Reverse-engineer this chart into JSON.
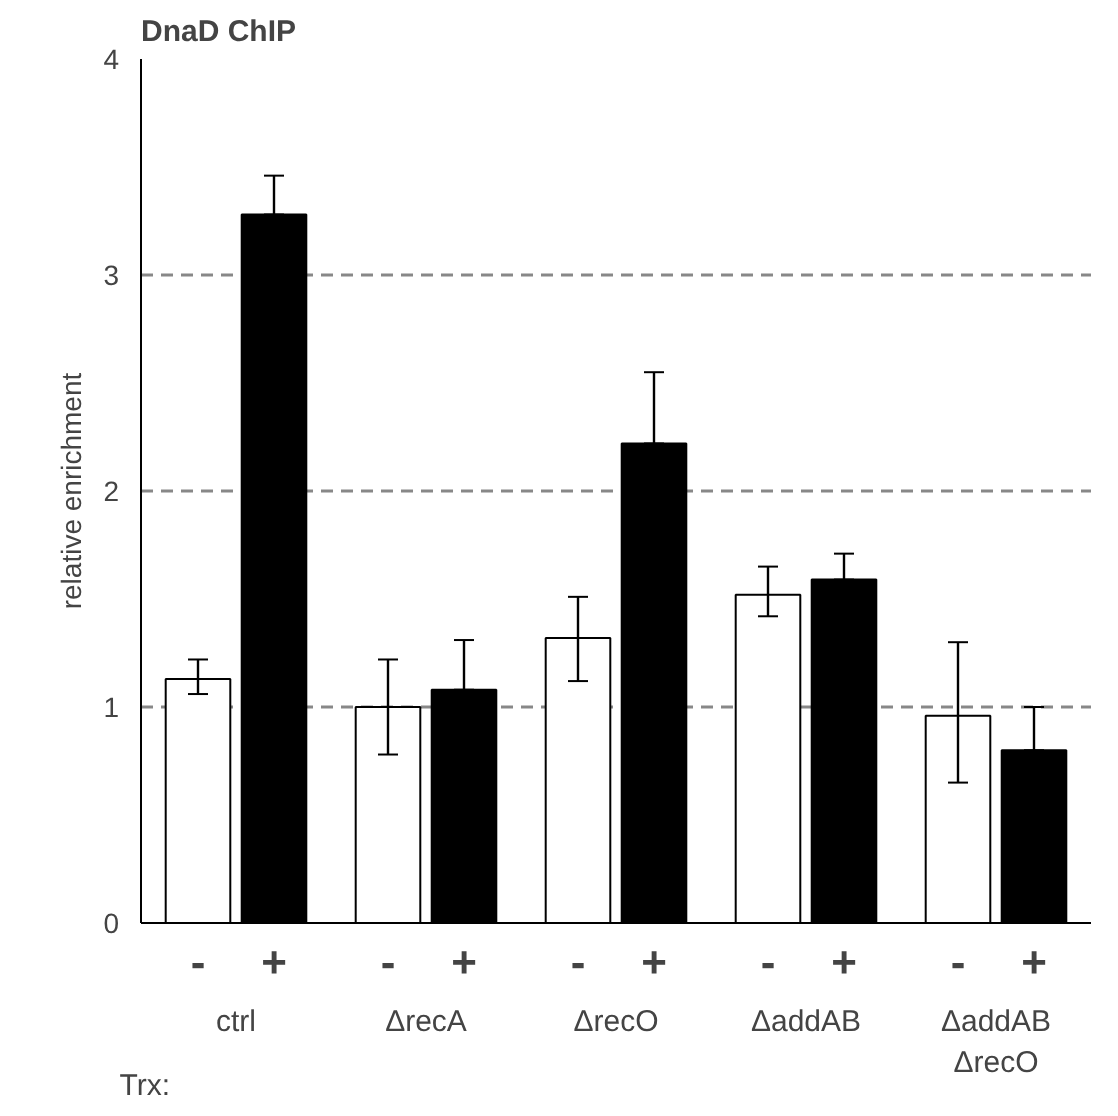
{
  "chart_data": {
    "type": "bar",
    "title": "DnaD ChIP",
    "ylabel": "relative enrichment",
    "categories": [
      "ctrl",
      "ΔrecA",
      "ΔrecO",
      "ΔaddAB",
      "ΔaddAB\nΔrecO"
    ],
    "series": [
      {
        "name": "-",
        "color": "#ffffff",
        "values": [
          1.13,
          1.0,
          1.32,
          1.52,
          0.96
        ],
        "errors": [
          [
            1.06,
            1.22
          ],
          [
            0.78,
            1.22
          ],
          [
            1.12,
            1.51
          ],
          [
            1.42,
            1.65
          ],
          [
            0.65,
            1.3
          ]
        ]
      },
      {
        "name": "+",
        "color": "#000000",
        "values": [
          3.28,
          1.08,
          2.22,
          1.59,
          0.8
        ],
        "errors": [
          [
            3.28,
            3.46
          ],
          [
            1.08,
            1.31
          ],
          [
            2.22,
            2.55
          ],
          [
            1.59,
            1.71
          ],
          [
            0.8,
            1.0
          ]
        ]
      }
    ],
    "ylim": [
      0,
      4
    ],
    "yticks": [
      0,
      1,
      2,
      3,
      4
    ],
    "grid": "y",
    "annotations": [
      "Trx:"
    ]
  }
}
